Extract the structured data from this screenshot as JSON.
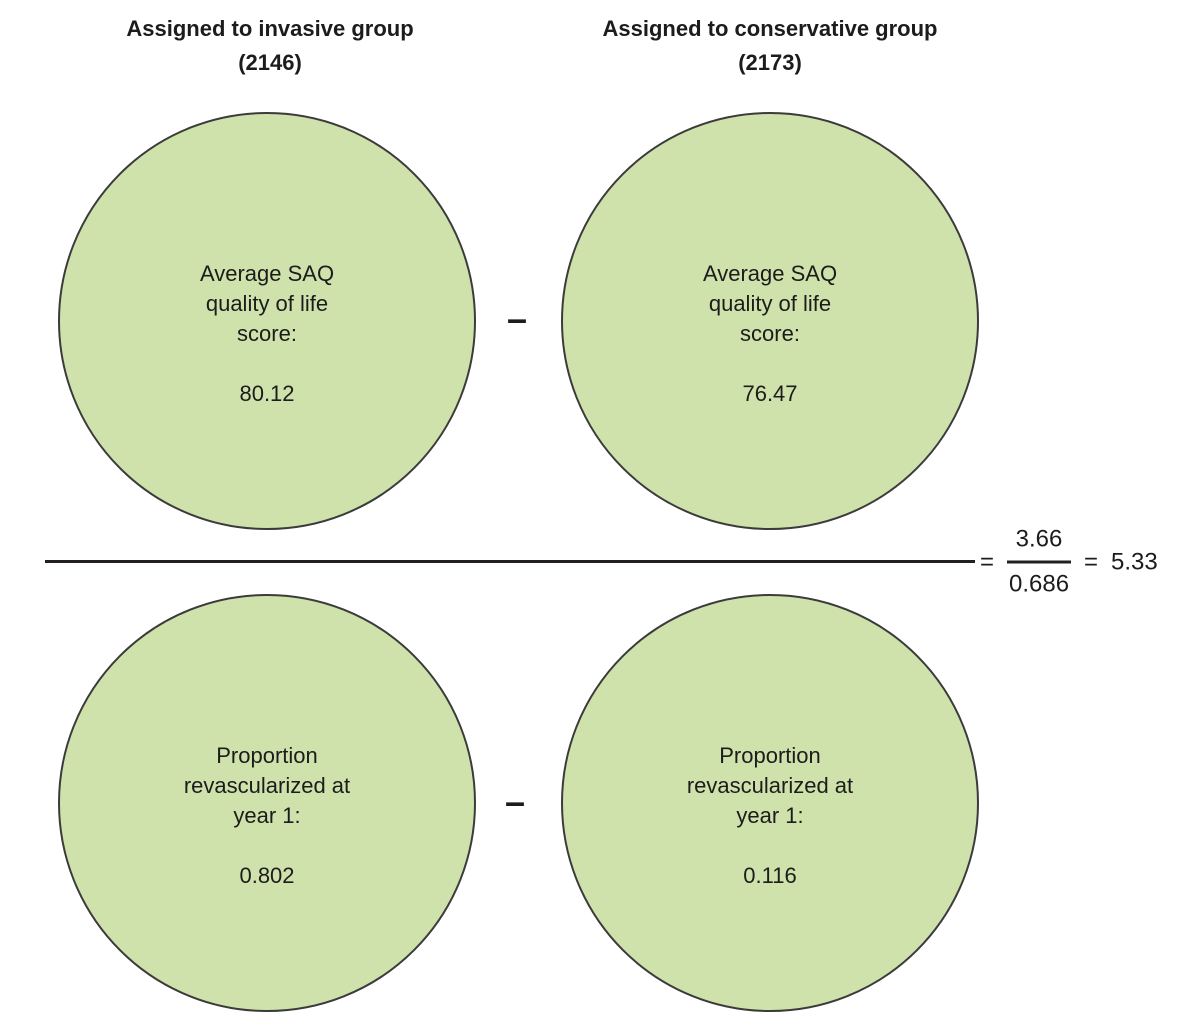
{
  "columns": [
    {
      "title": "Assigned to invasive group",
      "count": "(2146)"
    },
    {
      "title": "Assigned to conservative group",
      "count": "(2173)"
    }
  ],
  "numerator_row": {
    "left_circle": {
      "label": "Average SAQ\nquality of life\nscore:",
      "value": "80.12"
    },
    "operator": "–",
    "right_circle": {
      "label": "Average SAQ\nquality of life\nscore:",
      "value": "76.47"
    }
  },
  "denominator_row": {
    "left_circle": {
      "label": "Proportion\nrevascularized at\nyear 1:",
      "value": "0.802"
    },
    "operator": "–",
    "right_circle": {
      "label": "Proportion\nrevascularized at\nyear 1:",
      "value": "0.116"
    }
  },
  "equation": {
    "equals_1": "=",
    "numerator": "3.66",
    "denominator": "0.686",
    "equals_2": "=",
    "result": "5.33"
  },
  "colors": {
    "circle_fill": "#cfe2ab",
    "circle_stroke": "#3b3b3b",
    "text": "#1c1c1c",
    "line": "#231f20"
  }
}
